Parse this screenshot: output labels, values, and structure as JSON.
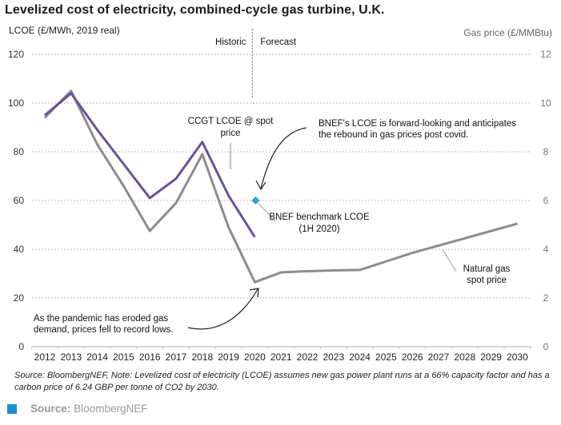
{
  "chart_data": {
    "type": "line",
    "title": "Levelized cost of electricity, combined-cycle gas turbine, U.K.",
    "ylabel": "LCOE (£/MWh, 2019 real)",
    "y2label": "Gas price (£/MMBtu)",
    "xlabel": "",
    "ylim": [
      0,
      120
    ],
    "y2lim": [
      0,
      12
    ],
    "yticks": [
      "0",
      "20",
      "40",
      "60",
      "80",
      "100",
      "120"
    ],
    "y2ticks": [
      "0",
      "2",
      "4",
      "6",
      "8",
      "10",
      "12"
    ],
    "categories": [
      "2012",
      "2013",
      "2014",
      "2015",
      "2016",
      "2017",
      "2018",
      "2019",
      "2020",
      "2021",
      "2022",
      "2023",
      "2024",
      "2025",
      "2026",
      "2027",
      "2028",
      "2029",
      "2030"
    ],
    "grid": true,
    "divider": {
      "after": "2020",
      "left_label": "Historic",
      "right_label": "Forecast"
    },
    "series": [
      {
        "name": "CCGT LCOE @ spot price",
        "axis": "left",
        "color": "#6b4fa0",
        "values": [
          95,
          104,
          89,
          75,
          61,
          69,
          84,
          62,
          45,
          null,
          null,
          null,
          null,
          null,
          null,
          null,
          null,
          null,
          null
        ]
      },
      {
        "name": "Natural gas spot price",
        "axis": "right",
        "color": "#8c8c8c",
        "values": [
          9.4,
          10.5,
          8.3,
          6.6,
          4.75,
          5.9,
          7.9,
          4.9,
          2.65,
          3.05,
          3.1,
          3.13,
          3.15,
          3.5,
          3.85,
          4.15,
          4.45,
          4.75,
          5.05
        ]
      },
      {
        "name": "BNEF benchmark LCOE (1H 2020)",
        "axis": "left",
        "type": "point",
        "color": "#29a8d0",
        "x": "2020",
        "value": 60
      }
    ],
    "annotations": [
      {
        "id": "ccgt",
        "lines": [
          "CCGT LCOE @ spot",
          "price"
        ]
      },
      {
        "id": "bnef-forward",
        "lines": [
          "BNEF's LCOE is forward-looking and anticipates",
          "the rebound in gas prices post covid."
        ]
      },
      {
        "id": "benchmark",
        "lines": [
          "BNEF benchmark LCOE",
          "(1H 2020)"
        ]
      },
      {
        "id": "gas",
        "lines": [
          "Natural gas",
          "spot price"
        ]
      },
      {
        "id": "pandemic",
        "lines": [
          "As the pandemic has eroded gas",
          "demand, prices fell to record lows."
        ]
      }
    ]
  },
  "footer": {
    "note": "Source: BloombergNEF, Note: Levelized cost of electricity (LCOE) assumes new gas power plant runs at a 66% capacity factor and has a carbon price of 6.24 GBP per tonne of CO2 by 2030.",
    "source_label": "Source:",
    "source_value": "BloombergNEF",
    "source_color": "#1a90d6"
  }
}
